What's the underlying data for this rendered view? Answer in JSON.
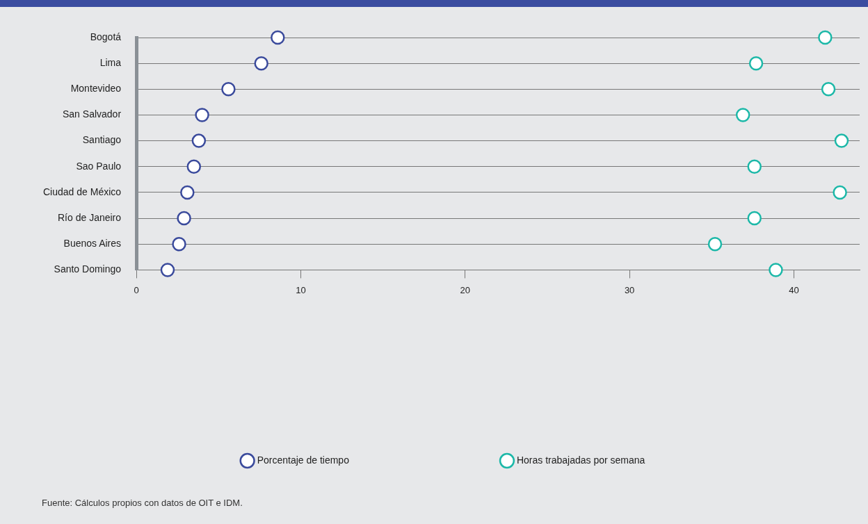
{
  "chart_data": {
    "type": "scatter",
    "orientation": "horizontal",
    "categories": [
      "Bogotá",
      "Lima",
      "Montevideo",
      "San Salvador",
      "Santiago",
      "Sao Paulo",
      "Ciudad de México",
      "Río de Janeiro",
      "Buenos Aires",
      "Santo Domingo"
    ],
    "series": [
      {
        "name": "Porcentaje de tiempo",
        "color": "#3a4a9c",
        "values": [
          8.6,
          7.6,
          5.6,
          4.0,
          3.8,
          3.5,
          3.1,
          2.9,
          2.6,
          1.9
        ]
      },
      {
        "name": "Horas trabajadas por semana",
        "color": "#1cb8a8",
        "values": [
          41.9,
          37.7,
          42.1,
          36.9,
          42.9,
          37.6,
          42.8,
          37.6,
          35.2,
          38.9
        ]
      }
    ],
    "xlim": [
      0,
      44
    ],
    "xticks": [
      0,
      10,
      20,
      30,
      40
    ],
    "grid": "y",
    "legend": "bottom",
    "marker": "circle",
    "annotations": [
      "Fuente: Cálculos propios con datos de OIT e IDM."
    ]
  }
}
